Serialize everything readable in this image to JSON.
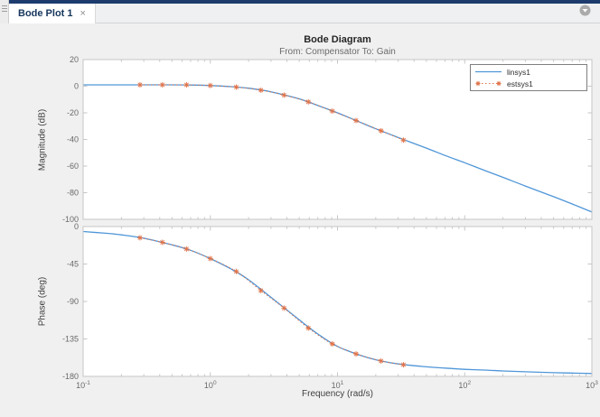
{
  "window": {
    "tab": {
      "label": "Bode Plot 1",
      "close_glyph": "×"
    },
    "icons": {
      "options": "gear-dropdown",
      "grip": "panel-grip"
    }
  },
  "colors": {
    "accent_bar": "#1d3c6d",
    "figure_bg": "#f0f0f0",
    "axes_bg": "#ffffff",
    "axes_border": "#c6c6c6",
    "tick_label": "#696969",
    "linsys1": "#4f96d8",
    "estsys1": "#e07248"
  },
  "chart_data": [
    {
      "type": "line",
      "title": "Bode Diagram",
      "subtitle": "From: Compensator  To: Gain",
      "ylabel": "Magnitude (dB)",
      "xlabel": "",
      "x_scale": "log",
      "xlim_log10": [
        -1,
        3
      ],
      "xticks_exp": [
        -1,
        0,
        1,
        2,
        3
      ],
      "ylim": [
        -100,
        20
      ],
      "yticks": [
        20,
        0,
        -20,
        -40,
        -60,
        -80,
        -100
      ],
      "grid": false,
      "legend_position": "top-right",
      "series": [
        {
          "name": "linsys1",
          "color": "#4f96d8",
          "style": "solid",
          "x": [
            0.1,
            0.15,
            0.2,
            0.3,
            0.5,
            0.7,
            1,
            1.5,
            2,
            3,
            5,
            7,
            10,
            15,
            20,
            30,
            50,
            70,
            100,
            150,
            200,
            300,
            500,
            700,
            1000
          ],
          "y": [
            1,
            1,
            1,
            1,
            1,
            0.9,
            0.5,
            -0.4,
            -1.5,
            -4.2,
            -9.5,
            -14.5,
            -20,
            -27,
            -32,
            -38.5,
            -46.5,
            -52,
            -57.5,
            -64,
            -68.5,
            -75,
            -83,
            -88.5,
            -94.5
          ]
        },
        {
          "name": "estsys1",
          "color": "#e07248",
          "style": "dotted-asterisk",
          "x": [
            0.28,
            0.42,
            0.65,
            1.0,
            1.6,
            2.5,
            3.8,
            5.9,
            9.1,
            14,
            22,
            33
          ],
          "y": [
            1,
            1,
            1,
            0.5,
            -0.7,
            -3.0,
            -6.7,
            -11.8,
            -18.7,
            -25.8,
            -33.5,
            -40.5
          ]
        }
      ]
    },
    {
      "type": "line",
      "title": "",
      "ylabel": "Phase (deg)",
      "xlabel": "Frequency  (rad/s)",
      "x_scale": "log",
      "xlim_log10": [
        -1,
        3
      ],
      "xticks_exp": [
        -1,
        0,
        1,
        2,
        3
      ],
      "ylim": [
        -180,
        0
      ],
      "yticks": [
        0,
        -45,
        -90,
        -135,
        -180
      ],
      "grid": false,
      "series": [
        {
          "name": "linsys1",
          "color": "#4f96d8",
          "style": "solid",
          "x": [
            0.1,
            0.15,
            0.2,
            0.3,
            0.5,
            0.7,
            1,
            1.5,
            2,
            3,
            5,
            7,
            10,
            15,
            20,
            30,
            50,
            70,
            100,
            150,
            200,
            300,
            500,
            700,
            1000
          ],
          "y": [
            -6,
            -8,
            -10,
            -14,
            -22,
            -28.5,
            -38.5,
            -52,
            -64,
            -85,
            -112,
            -129,
            -144,
            -154.5,
            -160,
            -165,
            -168.5,
            -170,
            -171.5,
            -172.5,
            -173.5,
            -174.5,
            -175.5,
            -176,
            -176.5
          ]
        },
        {
          "name": "estsys1",
          "color": "#e07248",
          "style": "dotted-asterisk",
          "x": [
            0.28,
            0.42,
            0.65,
            1.0,
            1.6,
            2.5,
            3.8,
            5.9,
            9.1,
            14,
            22,
            33
          ],
          "y": [
            -13.5,
            -19,
            -27,
            -38.5,
            -54,
            -77,
            -98,
            -122,
            -141,
            -153,
            -161.5,
            -166
          ]
        }
      ]
    }
  ]
}
